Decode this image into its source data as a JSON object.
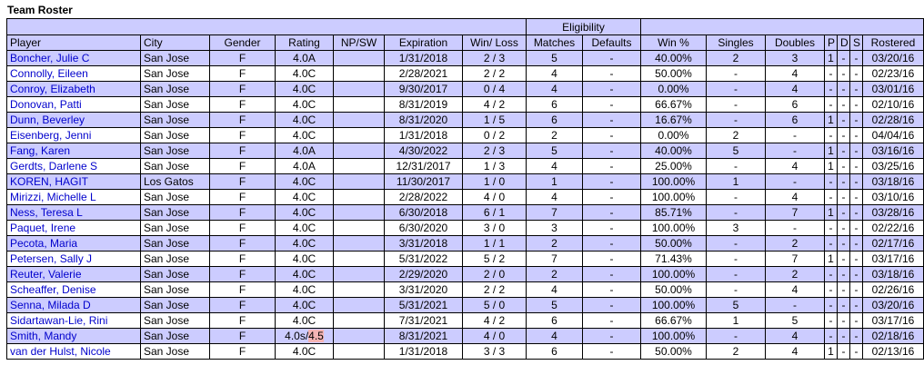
{
  "title": "Team Roster",
  "group_header": "Eligibility",
  "columns": [
    "Player",
    "City",
    "Gender",
    "Rating",
    "NP/SW",
    "Expiration",
    "Win/ Loss",
    "Matches",
    "Defaults",
    "Win %",
    "Singles",
    "Doubles",
    "P",
    "D",
    "S",
    "Rostered"
  ],
  "rows": [
    {
      "player": "Boncher, Julie C",
      "city": "San Jose",
      "gender": "F",
      "rating": "4.0A",
      "rating_hl": "",
      "npsw": "",
      "expiration": "1/31/2018",
      "winloss": "2 / 3",
      "matches": "5",
      "defaults": "-",
      "winpct": "40.00%",
      "singles": "2",
      "doubles": "3",
      "p": "1",
      "d": "-",
      "s": "-",
      "rostered": "03/20/16"
    },
    {
      "player": "Connolly, Eileen",
      "city": "San Jose",
      "gender": "F",
      "rating": "4.0C",
      "rating_hl": "",
      "npsw": "",
      "expiration": "2/28/2021",
      "winloss": "2 / 2",
      "matches": "4",
      "defaults": "-",
      "winpct": "50.00%",
      "singles": "-",
      "doubles": "4",
      "p": "-",
      "d": "-",
      "s": "-",
      "rostered": "02/23/16"
    },
    {
      "player": "Conroy, Elizabeth",
      "city": "San Jose",
      "gender": "F",
      "rating": "4.0C",
      "rating_hl": "",
      "npsw": "",
      "expiration": "9/30/2017",
      "winloss": "0 / 4",
      "matches": "4",
      "defaults": "-",
      "winpct": "0.00%",
      "singles": "-",
      "doubles": "4",
      "p": "-",
      "d": "-",
      "s": "-",
      "rostered": "03/01/16"
    },
    {
      "player": "Donovan, Patti",
      "city": "San Jose",
      "gender": "F",
      "rating": "4.0C",
      "rating_hl": "",
      "npsw": "",
      "expiration": "8/31/2019",
      "winloss": "4 / 2",
      "matches": "6",
      "defaults": "-",
      "winpct": "66.67%",
      "singles": "-",
      "doubles": "6",
      "p": "-",
      "d": "-",
      "s": "-",
      "rostered": "02/10/16"
    },
    {
      "player": "Dunn, Beverley",
      "city": "San Jose",
      "gender": "F",
      "rating": "4.0C",
      "rating_hl": "",
      "npsw": "",
      "expiration": "8/31/2020",
      "winloss": "1 / 5",
      "matches": "6",
      "defaults": "-",
      "winpct": "16.67%",
      "singles": "-",
      "doubles": "6",
      "p": "1",
      "d": "-",
      "s": "-",
      "rostered": "02/28/16"
    },
    {
      "player": "Eisenberg, Jenni",
      "city": "San Jose",
      "gender": "F",
      "rating": "4.0C",
      "rating_hl": "",
      "npsw": "",
      "expiration": "1/31/2018",
      "winloss": "0 / 2",
      "matches": "2",
      "defaults": "-",
      "winpct": "0.00%",
      "singles": "2",
      "doubles": "-",
      "p": "-",
      "d": "-",
      "s": "-",
      "rostered": "04/04/16"
    },
    {
      "player": "Fang, Karen",
      "city": "San Jose",
      "gender": "F",
      "rating": "4.0A",
      "rating_hl": "",
      "npsw": "",
      "expiration": "4/30/2022",
      "winloss": "2 / 3",
      "matches": "5",
      "defaults": "-",
      "winpct": "40.00%",
      "singles": "5",
      "doubles": "-",
      "p": "1",
      "d": "-",
      "s": "-",
      "rostered": "03/16/16"
    },
    {
      "player": "Gerdts, Darlene S",
      "city": "San Jose",
      "gender": "F",
      "rating": "4.0A",
      "rating_hl": "",
      "npsw": "",
      "expiration": "12/31/2017",
      "winloss": "1 / 3",
      "matches": "4",
      "defaults": "-",
      "winpct": "25.00%",
      "singles": "-",
      "doubles": "4",
      "p": "1",
      "d": "-",
      "s": "-",
      "rostered": "03/25/16"
    },
    {
      "player": "KOREN, HAGIT",
      "city": "Los Gatos",
      "gender": "F",
      "rating": "4.0C",
      "rating_hl": "",
      "npsw": "",
      "expiration": "11/30/2017",
      "winloss": "1 / 0",
      "matches": "1",
      "defaults": "-",
      "winpct": "100.00%",
      "singles": "1",
      "doubles": "-",
      "p": "-",
      "d": "-",
      "s": "-",
      "rostered": "03/18/16"
    },
    {
      "player": "Mirizzi, Michelle L",
      "city": "San Jose",
      "gender": "F",
      "rating": "4.0C",
      "rating_hl": "",
      "npsw": "",
      "expiration": "2/28/2022",
      "winloss": "4 / 0",
      "matches": "4",
      "defaults": "-",
      "winpct": "100.00%",
      "singles": "-",
      "doubles": "4",
      "p": "-",
      "d": "-",
      "s": "-",
      "rostered": "03/10/16"
    },
    {
      "player": "Ness, Teresa L",
      "city": "San Jose",
      "gender": "F",
      "rating": "4.0C",
      "rating_hl": "",
      "npsw": "",
      "expiration": "6/30/2018",
      "winloss": "6 / 1",
      "matches": "7",
      "defaults": "-",
      "winpct": "85.71%",
      "singles": "-",
      "doubles": "7",
      "p": "1",
      "d": "-",
      "s": "-",
      "rostered": "03/28/16"
    },
    {
      "player": "Paquet, Irene",
      "city": "San Jose",
      "gender": "F",
      "rating": "4.0C",
      "rating_hl": "",
      "npsw": "",
      "expiration": "6/30/2020",
      "winloss": "3 / 0",
      "matches": "3",
      "defaults": "-",
      "winpct": "100.00%",
      "singles": "3",
      "doubles": "-",
      "p": "-",
      "d": "-",
      "s": "-",
      "rostered": "02/22/16"
    },
    {
      "player": "Pecota, Maria",
      "city": "San Jose",
      "gender": "F",
      "rating": "4.0C",
      "rating_hl": "",
      "npsw": "",
      "expiration": "3/31/2018",
      "winloss": "1 / 1",
      "matches": "2",
      "defaults": "-",
      "winpct": "50.00%",
      "singles": "-",
      "doubles": "2",
      "p": "-",
      "d": "-",
      "s": "-",
      "rostered": "02/17/16"
    },
    {
      "player": "Petersen, Sally J",
      "city": "San Jose",
      "gender": "F",
      "rating": "4.0C",
      "rating_hl": "",
      "npsw": "",
      "expiration": "5/31/2022",
      "winloss": "5 / 2",
      "matches": "7",
      "defaults": "-",
      "winpct": "71.43%",
      "singles": "-",
      "doubles": "7",
      "p": "1",
      "d": "-",
      "s": "-",
      "rostered": "03/17/16"
    },
    {
      "player": "Reuter, Valerie",
      "city": "San Jose",
      "gender": "F",
      "rating": "4.0C",
      "rating_hl": "",
      "npsw": "",
      "expiration": "2/29/2020",
      "winloss": "2 / 0",
      "matches": "2",
      "defaults": "-",
      "winpct": "100.00%",
      "singles": "-",
      "doubles": "2",
      "p": "-",
      "d": "-",
      "s": "-",
      "rostered": "03/18/16"
    },
    {
      "player": "Scheaffer, Denise",
      "city": "San Jose",
      "gender": "F",
      "rating": "4.0C",
      "rating_hl": "",
      "npsw": "",
      "expiration": "3/31/2020",
      "winloss": "2 / 2",
      "matches": "4",
      "defaults": "-",
      "winpct": "50.00%",
      "singles": "-",
      "doubles": "4",
      "p": "-",
      "d": "-",
      "s": "-",
      "rostered": "02/26/16"
    },
    {
      "player": "Senna, Milada D",
      "city": "San Jose",
      "gender": "F",
      "rating": "4.0C",
      "rating_hl": "",
      "npsw": "",
      "expiration": "5/31/2021",
      "winloss": "5 / 0",
      "matches": "5",
      "defaults": "-",
      "winpct": "100.00%",
      "singles": "5",
      "doubles": "-",
      "p": "-",
      "d": "-",
      "s": "-",
      "rostered": "03/20/16"
    },
    {
      "player": "Sidartawan-Lie, Rini",
      "city": "San Jose",
      "gender": "F",
      "rating": "4.0C",
      "rating_hl": "",
      "npsw": "",
      "expiration": "7/31/2021",
      "winloss": "4 / 2",
      "matches": "6",
      "defaults": "-",
      "winpct": "66.67%",
      "singles": "1",
      "doubles": "5",
      "p": "-",
      "d": "-",
      "s": "-",
      "rostered": "03/17/16"
    },
    {
      "player": "Smith, Mandy",
      "city": "San Jose",
      "gender": "F",
      "rating": "4.0s/",
      "rating_hl": "4.5",
      "npsw": "",
      "expiration": "8/31/2021",
      "winloss": "4 / 0",
      "matches": "4",
      "defaults": "-",
      "winpct": "100.00%",
      "singles": "-",
      "doubles": "4",
      "p": "-",
      "d": "-",
      "s": "-",
      "rostered": "02/18/16"
    },
    {
      "player": "van der Hulst, Nicole",
      "city": "San Jose",
      "gender": "F",
      "rating": "4.0C",
      "rating_hl": "",
      "npsw": "",
      "expiration": "1/31/2018",
      "winloss": "3 / 3",
      "matches": "6",
      "defaults": "-",
      "winpct": "50.00%",
      "singles": "2",
      "doubles": "4",
      "p": "1",
      "d": "-",
      "s": "-",
      "rostered": "02/13/16"
    }
  ],
  "colors": {
    "header_bg": "#ccccff",
    "row_shade": "#ccccff",
    "link": "#0000cc",
    "rating_highlight": "#f4b4b4"
  }
}
